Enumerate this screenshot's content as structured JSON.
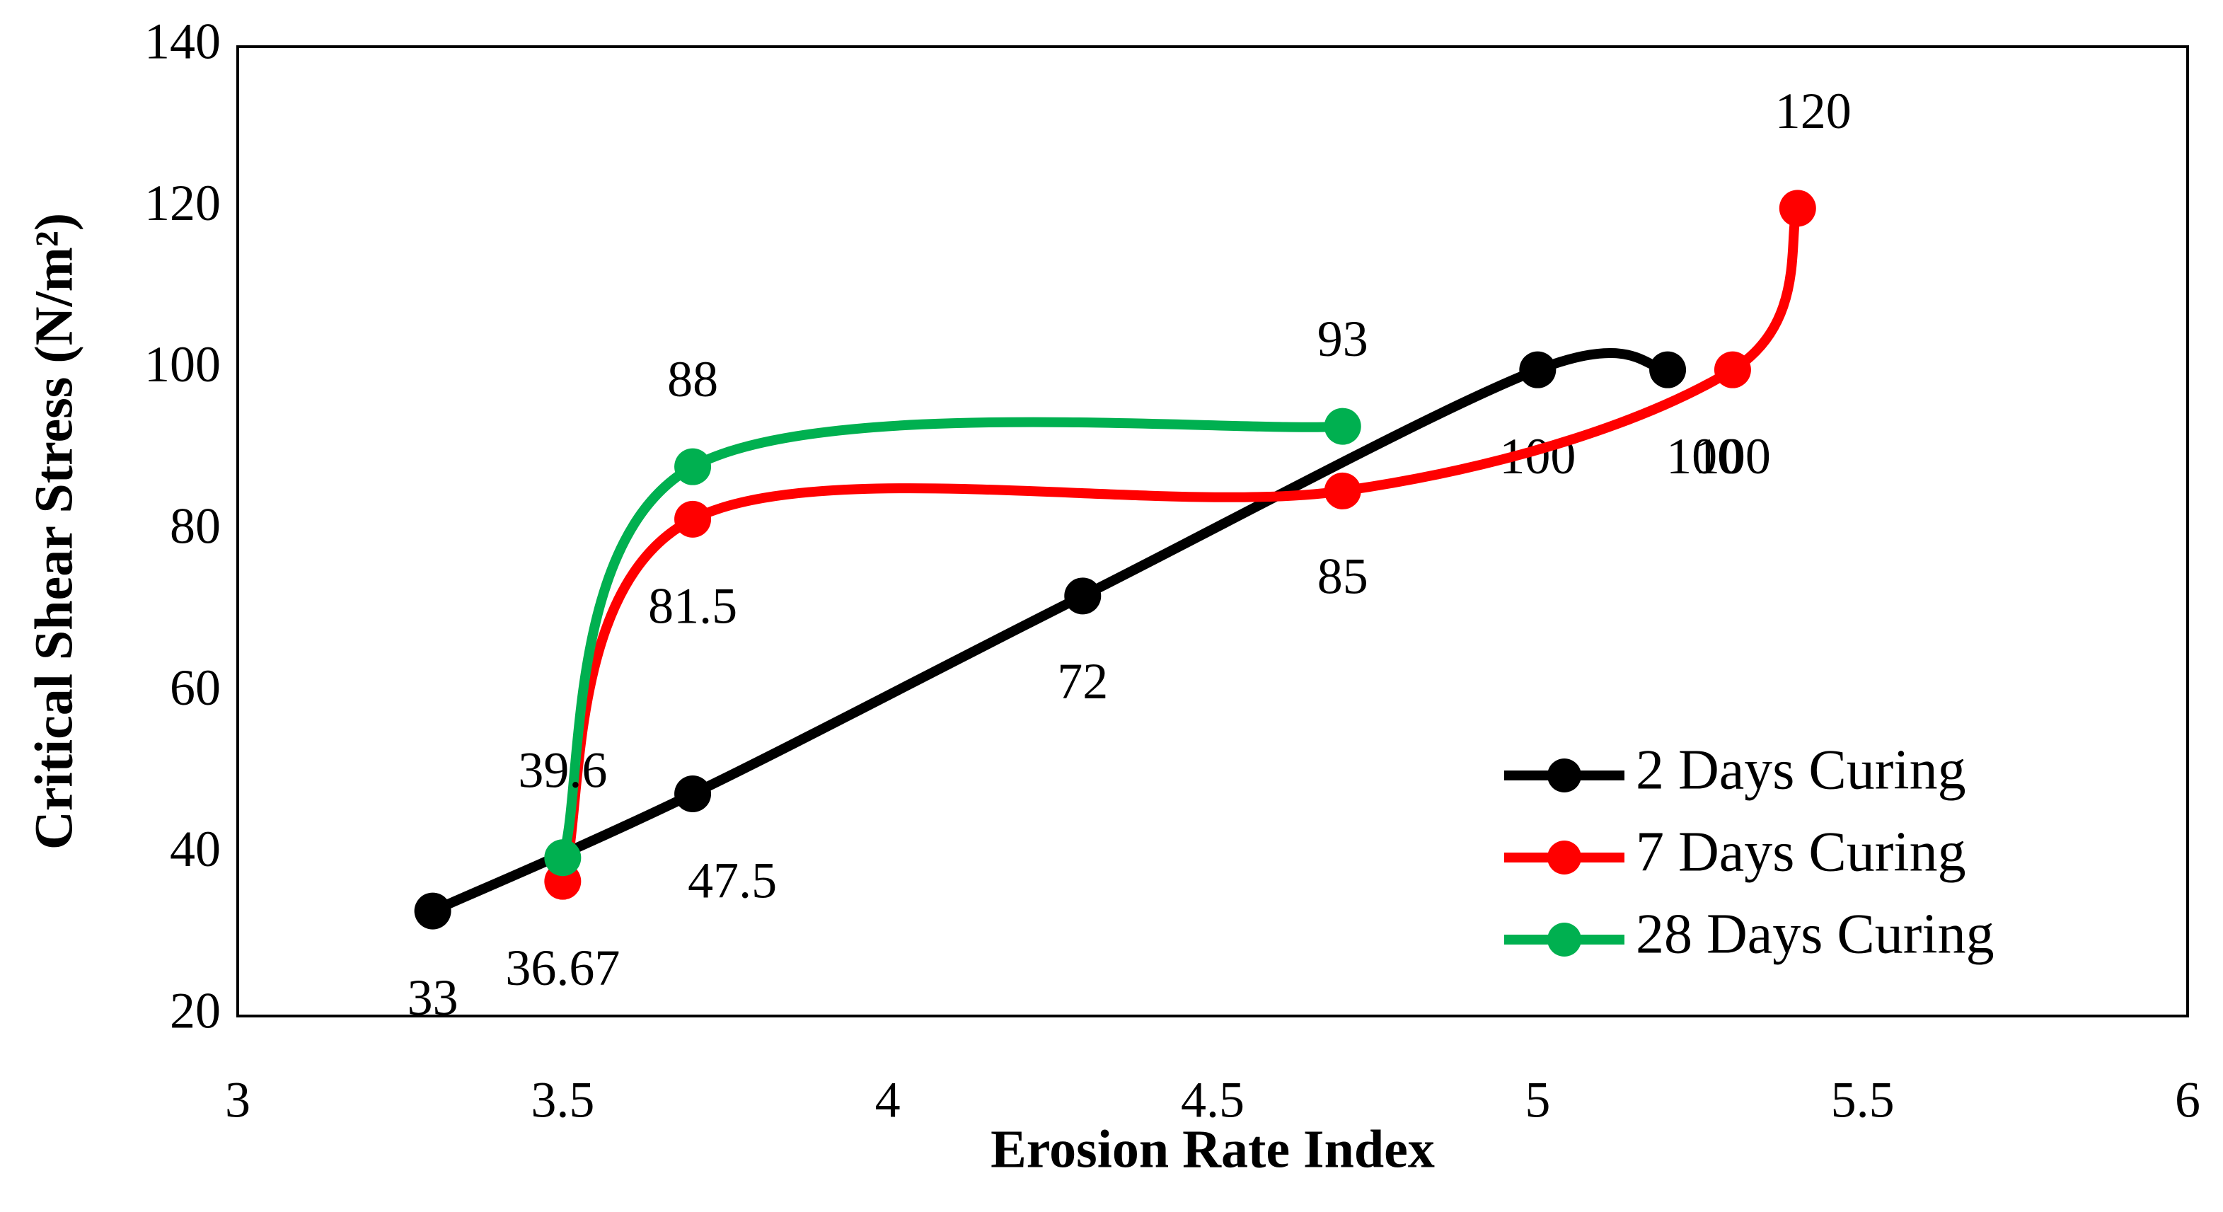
{
  "chart_data": {
    "type": "line",
    "xlabel": "Erosion Rate Index",
    "ylabel": "Critical Shear Stress (N/m²)",
    "xlim": [
      3,
      6
    ],
    "xticks": [
      3,
      3.5,
      4,
      4.5,
      5,
      5.5,
      6
    ],
    "ylim": [
      20,
      140
    ],
    "yticks": [
      20,
      40,
      60,
      80,
      100,
      120,
      140
    ],
    "smooth": true,
    "legend": "lower right",
    "series": [
      {
        "name": "2 Days Curing",
        "color": "#000000",
        "x": [
          3.3,
          3.7,
          4.3,
          5,
          5.2
        ],
        "values": [
          33,
          47.5,
          72,
          100,
          100
        ]
      },
      {
        "name": "7 Days Curing",
        "color": "#ff0000",
        "x": [
          3.5,
          3.7,
          4.7,
          5.3,
          5.4
        ],
        "values": [
          36.67,
          81.5,
          85,
          100,
          120
        ]
      },
      {
        "name": "28 Days Curing",
        "color": "#00b050",
        "x": [
          3.5,
          3.7,
          4.7
        ],
        "values": [
          39.6,
          88,
          93
        ]
      }
    ]
  }
}
